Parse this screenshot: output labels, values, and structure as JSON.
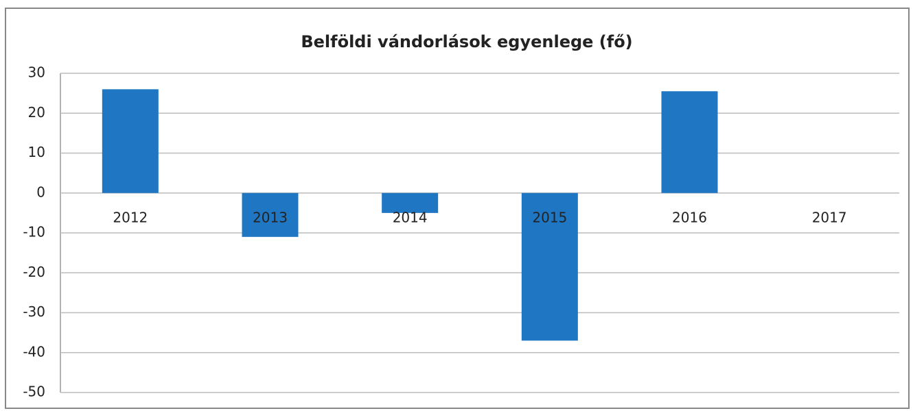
{
  "chart_data": {
    "type": "bar",
    "title": "Belföldi vándorlások egyenlege (fő)",
    "categories": [
      "2012",
      "2013",
      "2014",
      "2015",
      "2016",
      "2017"
    ],
    "values": [
      26,
      -11,
      -5,
      -37,
      25.5,
      0
    ],
    "color": "#1f77c4",
    "ylim": [
      -50,
      30
    ],
    "yticks": [
      -50,
      -40,
      -30,
      -20,
      -10,
      0,
      10,
      20,
      30
    ],
    "grid": true
  }
}
